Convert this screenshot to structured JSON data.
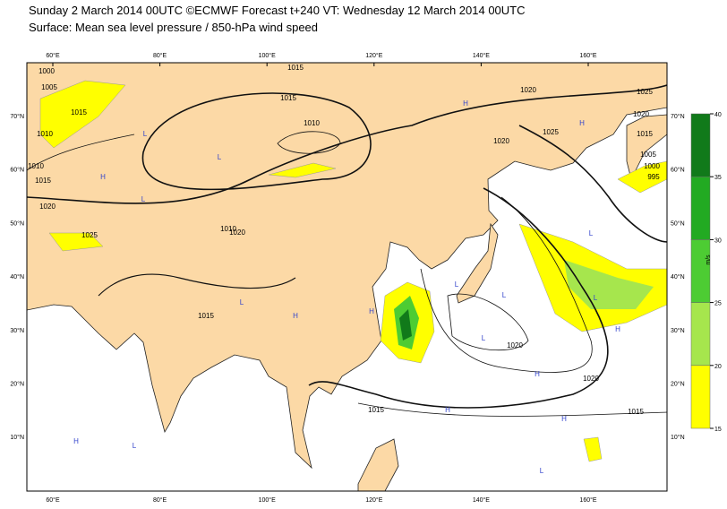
{
  "header": {
    "title": "Sunday 2 March 2014 00UTC ©ECMWF Forecast t+240 VT: Wednesday 12 March 2014 00UTC",
    "subtitle": "Surface: Mean sea level pressure / 850-hPa wind speed"
  },
  "map": {
    "lon_labels": [
      "60°E",
      "80°E",
      "100°E",
      "120°E",
      "140°E",
      "160°E"
    ],
    "lat_labels": [
      "70°N",
      "60°N",
      "50°N",
      "40°N",
      "30°N",
      "20°N",
      "10°N"
    ],
    "isobar_labels": [
      "1015",
      "1010",
      "1005",
      "1000",
      "1010",
      "1015",
      "1020",
      "1025",
      "1015",
      "1010",
      "1015",
      "1020",
      "1025",
      "1020",
      "1015",
      "1020",
      "1025",
      "1020",
      "1015",
      "1010",
      "1005",
      "1000",
      "995",
      "1020",
      "1020",
      "1015",
      "1015"
    ],
    "centers": [
      "L",
      "L",
      "L",
      "H",
      "H",
      "L",
      "H",
      "H",
      "L",
      "L",
      "H",
      "L",
      "H",
      "L",
      "H",
      "L",
      "H",
      "H",
      "L",
      "H",
      "L"
    ]
  },
  "colorbar": {
    "unit": "m/s",
    "ticks": [
      15,
      20,
      25,
      30,
      35,
      40
    ],
    "colors": [
      "#ffff00",
      "#a6e64d",
      "#4dcc33",
      "#22aa22",
      "#117a1a"
    ]
  }
}
